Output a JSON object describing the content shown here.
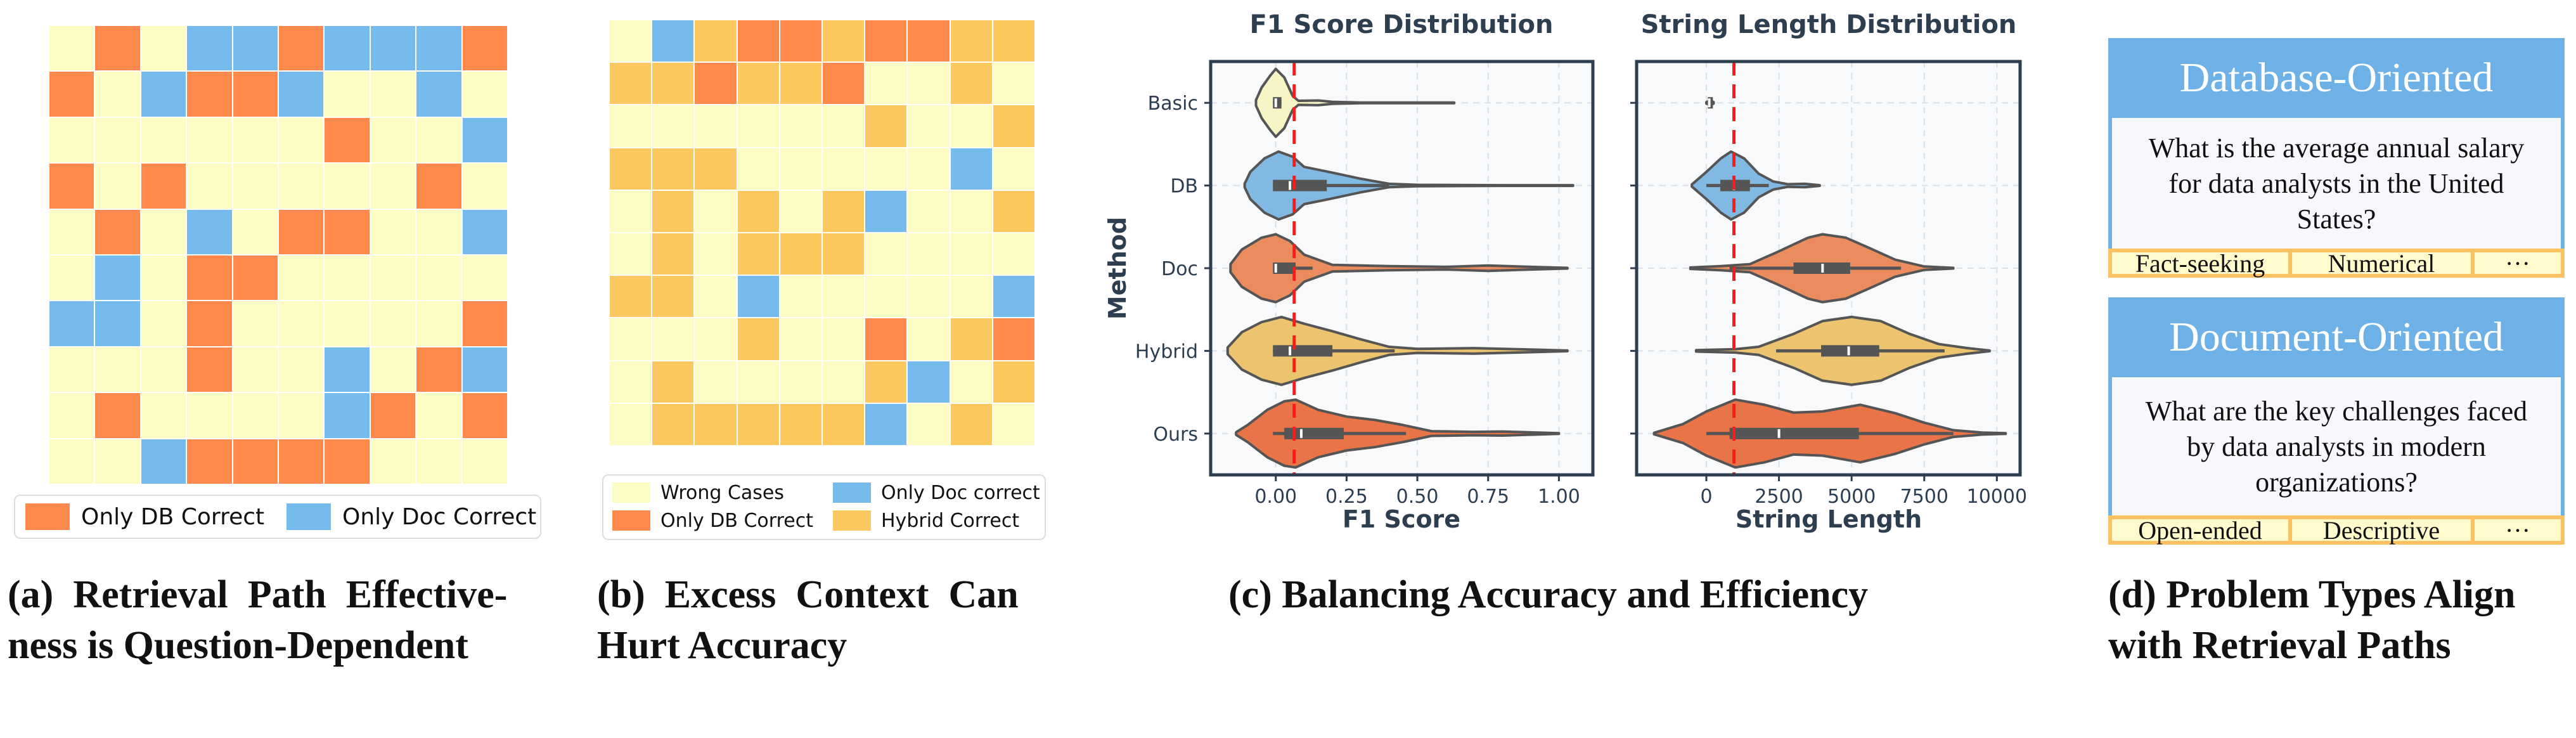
{
  "figure": {
    "panels": {
      "a": {
        "caption": "(a) Retrieval Path Effective-ness is Question-Dependent",
        "caption_lines": [
          "(a)  Retrieval  Path  Effective-",
          "ness is Question-Dependent"
        ]
      },
      "b": {
        "caption": "(b) Excess Context Can Hurt Accuracy",
        "caption_lines": [
          "(b)  Excess  Context  Can",
          "Hurt Accuracy"
        ]
      },
      "c": {
        "caption": "(c) Balancing Accuracy and Efficiency",
        "caption_lines": [
          "(c) Balancing Accuracy and Efficiency"
        ]
      },
      "d": {
        "caption": "(d) Problem Types Align with Retrieval Paths",
        "caption_lines": [
          "(d) Problem Types Align",
          "with Retrieval Paths"
        ],
        "cards": [
          {
            "title": "Database-Oriented",
            "question": "What is the average annual salary for data analysts in the United States?",
            "tags": [
              "Fact-seeking",
              "Numerical",
              "···"
            ]
          },
          {
            "title": "Document-Oriented",
            "question": "What are the key challenges faced by data analysts in modern organizations?",
            "tags": [
              "Open-ended",
              "Descriptive",
              "···"
            ]
          }
        ]
      }
    },
    "colors": {
      "wrong": "#fefcc5",
      "db": "#ff884d",
      "doc": "#76bbee",
      "hybrid": "#fdc85f",
      "axis": "#2c3e50",
      "threshold": "#ff1a1a",
      "card_header": "#6db1e6",
      "tag_border": "#fbc163"
    }
  },
  "chart_data": [
    {
      "type": "heatmap",
      "id": "a",
      "title": "",
      "rows": 10,
      "cols": 10,
      "legend": [
        {
          "key": "D",
          "label": "Only DB Correct",
          "color": "#ff884d"
        },
        {
          "key": "O",
          "label": "Only Doc Correct",
          "color": "#76bbee"
        }
      ],
      "legend_position": "bottom",
      "key": {
        "W": "Wrong (background)",
        "D": "Only DB Correct",
        "O": "Only Doc Correct"
      },
      "values": [
        "WDWOODOOOD",
        "DWODDOWWOW",
        "WWWWWWDWWO",
        "DWDWWWWWDW",
        "WDWOWDDWWO",
        "WOWDDWWWWW",
        "OOWDWWWWWD",
        "WWWDWWOWDO",
        "WDWWWWODWD",
        "WWODDDDWWW"
      ]
    },
    {
      "type": "heatmap",
      "id": "b",
      "title": "",
      "rows": 10,
      "cols": 10,
      "legend": [
        {
          "key": "W",
          "label": "Wrong Cases",
          "color": "#fefcc5"
        },
        {
          "key": "O",
          "label": "Only Doc correct",
          "color": "#76bbee"
        },
        {
          "key": "D",
          "label": "Only DB Correct",
          "color": "#ff884d"
        },
        {
          "key": "H",
          "label": "Hybrid Correct",
          "color": "#fdc85f"
        }
      ],
      "legend_position": "bottom",
      "values": [
        "WOHDDHDDHH",
        "HHDHHDWWHW",
        "WWWWWWHWWH",
        "HHHWWWWWOW",
        "WHWHWHOWWH",
        "WHWHHHWWWW",
        "HHWOWWWWWO",
        "WWWHWWDWHD",
        "WHWWWWHOWH",
        "WHHHHHOWHW"
      ]
    },
    {
      "type": "violin",
      "id": "c1",
      "title": "F1 Score Distribution",
      "xlabel": "F1 Score",
      "ylabel": "Method",
      "categories": [
        "Basic",
        "DB",
        "Doc",
        "Hybrid",
        "Ours"
      ],
      "xlim": [
        -0.23,
        1.12
      ],
      "xticks": [
        0.0,
        0.25,
        0.5,
        0.75,
        1.0
      ],
      "xtick_labels": [
        "0.00",
        "0.25",
        "0.50",
        "0.75",
        "1.00"
      ],
      "threshold": 0.065,
      "grid": true,
      "series": [
        {
          "name": "Basic",
          "color": "#f7f5c6",
          "q1": -0.01,
          "median": 0.0,
          "q3": 0.02,
          "whisker_lo": -0.01,
          "whisker_hi": 0.02,
          "min": -0.07,
          "max": 0.63,
          "density": [
            [
              -0.07,
              0.08
            ],
            [
              -0.05,
              0.45
            ],
            [
              -0.02,
              0.8
            ],
            [
              0.0,
              1.0
            ],
            [
              0.03,
              0.75
            ],
            [
              0.06,
              0.2
            ],
            [
              0.08,
              0.06
            ],
            [
              0.15,
              0.07
            ],
            [
              0.2,
              0.03
            ],
            [
              0.3,
              0.01
            ],
            [
              0.63,
              0.01
            ]
          ]
        },
        {
          "name": "DB",
          "color": "#82b9e3",
          "q1": -0.01,
          "median": 0.05,
          "q3": 0.18,
          "whisker_lo": -0.01,
          "whisker_hi": 0.4,
          "min": -0.11,
          "max": 1.05,
          "density": [
            [
              -0.11,
              0.05
            ],
            [
              -0.09,
              0.4
            ],
            [
              -0.04,
              0.8
            ],
            [
              0.01,
              1.0
            ],
            [
              0.06,
              0.85
            ],
            [
              0.1,
              0.55
            ],
            [
              0.2,
              0.38
            ],
            [
              0.3,
              0.2
            ],
            [
              0.4,
              0.05
            ],
            [
              0.5,
              0.02
            ],
            [
              0.8,
              0.01
            ],
            [
              1.05,
              0.01
            ]
          ]
        },
        {
          "name": "Doc",
          "color": "#ea8c5d",
          "q1": -0.01,
          "median": 0.0,
          "q3": 0.07,
          "whisker_lo": -0.01,
          "whisker_hi": 0.13,
          "min": -0.16,
          "max": 1.03,
          "density": [
            [
              -0.16,
              0.12
            ],
            [
              -0.12,
              0.55
            ],
            [
              -0.05,
              0.9
            ],
            [
              0.0,
              1.0
            ],
            [
              0.05,
              0.8
            ],
            [
              0.1,
              0.4
            ],
            [
              0.2,
              0.1
            ],
            [
              0.4,
              0.06
            ],
            [
              0.6,
              0.04
            ],
            [
              0.75,
              0.08
            ],
            [
              0.9,
              0.04
            ],
            [
              1.03,
              0.01
            ]
          ]
        },
        {
          "name": "Hybrid",
          "color": "#ecc46f",
          "q1": -0.01,
          "median": 0.05,
          "q3": 0.2,
          "whisker_lo": -0.01,
          "whisker_hi": 0.42,
          "min": -0.17,
          "max": 1.03,
          "density": [
            [
              -0.17,
              0.1
            ],
            [
              -0.12,
              0.55
            ],
            [
              -0.05,
              0.85
            ],
            [
              0.02,
              1.0
            ],
            [
              0.1,
              0.8
            ],
            [
              0.2,
              0.58
            ],
            [
              0.3,
              0.34
            ],
            [
              0.4,
              0.12
            ],
            [
              0.5,
              0.06
            ],
            [
              0.7,
              0.08
            ],
            [
              0.9,
              0.04
            ],
            [
              1.03,
              0.01
            ]
          ]
        },
        {
          "name": "Ours",
          "color": "#e87447",
          "q1": 0.03,
          "median": 0.09,
          "q3": 0.24,
          "whisker_lo": -0.01,
          "whisker_hi": 0.46,
          "min": -0.14,
          "max": 1.0,
          "density": [
            [
              -0.14,
              0.04
            ],
            [
              -0.1,
              0.25
            ],
            [
              -0.03,
              0.7
            ],
            [
              0.03,
              0.95
            ],
            [
              0.07,
              1.0
            ],
            [
              0.15,
              0.7
            ],
            [
              0.25,
              0.5
            ],
            [
              0.35,
              0.4
            ],
            [
              0.45,
              0.25
            ],
            [
              0.55,
              0.07
            ],
            [
              0.7,
              0.05
            ],
            [
              0.8,
              0.06
            ],
            [
              1.0,
              0.01
            ]
          ]
        }
      ]
    },
    {
      "type": "violin",
      "id": "c2",
      "title": "String Length Distribution",
      "xlabel": "String Length",
      "ylabel": "",
      "categories": [
        "Basic",
        "DB",
        "Doc",
        "Hybrid",
        "Ours"
      ],
      "xlim": [
        -2400,
        10800
      ],
      "xticks": [
        0,
        2500,
        5000,
        7500,
        10000
      ],
      "xtick_labels": [
        "0",
        "2500",
        "5000",
        "7500",
        "10000"
      ],
      "threshold": 950,
      "grid": true,
      "series": [
        {
          "name": "Basic",
          "color": "#f7f5c6",
          "q1": 50,
          "median": 100,
          "q3": 200,
          "whisker_lo": 50,
          "whisker_hi": 200,
          "min": 0,
          "max": 250,
          "density": [
            [
              0,
              0.02
            ],
            [
              80,
              0.05
            ],
            [
              120,
              0.06
            ],
            [
              180,
              0.05
            ],
            [
              250,
              0.02
            ]
          ]
        },
        {
          "name": "DB",
          "color": "#82b9e3",
          "q1": 480,
          "median": 950,
          "q3": 1500,
          "whisker_lo": 0,
          "whisker_hi": 2150,
          "min": -500,
          "max": 3900,
          "density": [
            [
              -500,
              0.03
            ],
            [
              0,
              0.4
            ],
            [
              500,
              0.8
            ],
            [
              850,
              1.0
            ],
            [
              1300,
              0.8
            ],
            [
              1800,
              0.35
            ],
            [
              2300,
              0.12
            ],
            [
              2800,
              0.04
            ],
            [
              3400,
              0.05
            ],
            [
              3900,
              0.01
            ]
          ]
        },
        {
          "name": "Doc",
          "color": "#ea8c5d",
          "q1": 3000,
          "median": 4000,
          "q3": 4950,
          "whisker_lo": 800,
          "whisker_hi": 6700,
          "min": -550,
          "max": 8500,
          "density": [
            [
              -550,
              0.02
            ],
            [
              500,
              0.06
            ],
            [
              1500,
              0.12
            ],
            [
              2500,
              0.5
            ],
            [
              3500,
              0.9
            ],
            [
              4000,
              1.0
            ],
            [
              4800,
              0.9
            ],
            [
              5600,
              0.6
            ],
            [
              6500,
              0.25
            ],
            [
              7500,
              0.05
            ],
            [
              8500,
              0.01
            ]
          ]
        },
        {
          "name": "Hybrid",
          "color": "#ecc46f",
          "q1": 3950,
          "median": 4900,
          "q3": 5950,
          "whisker_lo": 2400,
          "whisker_hi": 8200,
          "min": -350,
          "max": 9750,
          "density": [
            [
              -350,
              0.02
            ],
            [
              1000,
              0.05
            ],
            [
              1800,
              0.12
            ],
            [
              3000,
              0.5
            ],
            [
              4000,
              0.88
            ],
            [
              5000,
              1.0
            ],
            [
              6000,
              0.88
            ],
            [
              7000,
              0.5
            ],
            [
              8000,
              0.2
            ],
            [
              9000,
              0.08
            ],
            [
              9750,
              0.01
            ]
          ]
        },
        {
          "name": "Ours",
          "color": "#e87447",
          "q1": 800,
          "median": 2500,
          "q3": 5250,
          "whisker_lo": 0,
          "whisker_hi": 8500,
          "min": -1800,
          "max": 10300,
          "density": [
            [
              -1800,
              0.02
            ],
            [
              -800,
              0.28
            ],
            [
              0,
              0.65
            ],
            [
              1000,
              1.0
            ],
            [
              2000,
              0.85
            ],
            [
              3000,
              0.62
            ],
            [
              4000,
              0.65
            ],
            [
              5300,
              0.85
            ],
            [
              6500,
              0.6
            ],
            [
              7500,
              0.32
            ],
            [
              8500,
              0.1
            ],
            [
              9500,
              0.03
            ],
            [
              10300,
              0.01
            ]
          ]
        }
      ]
    }
  ]
}
